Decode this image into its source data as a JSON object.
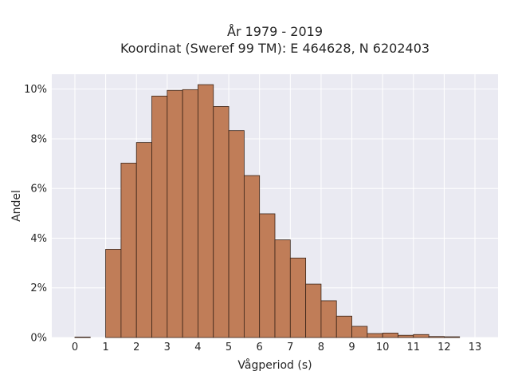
{
  "chart_data": {
    "type": "bar",
    "title": "År 1979 - 2019",
    "subtitle": "Koordinat (Sweref 99 TM): E 464628, N 6202403",
    "xlabel": "Vågperiod (s)",
    "ylabel": "Andel",
    "xlim": [
      -0.75,
      13.75
    ],
    "ylim": [
      0,
      10.6
    ],
    "x_ticks": [
      0,
      1,
      2,
      3,
      4,
      5,
      6,
      7,
      8,
      9,
      10,
      11,
      12,
      13
    ],
    "y_ticks": [
      0,
      2,
      4,
      6,
      8,
      10
    ],
    "y_tick_labels": [
      "0%",
      "2%",
      "4%",
      "6%",
      "8%",
      "10%"
    ],
    "bin_width": 0.5,
    "bin_starts": [
      0,
      0.5,
      1,
      1.5,
      2,
      2.5,
      3,
      3.5,
      4,
      4.5,
      5,
      5.5,
      6,
      6.5,
      7,
      7.5,
      8,
      8.5,
      9,
      9.5,
      10,
      10.5,
      11,
      11.5,
      12,
      12.5
    ],
    "values": [
      0.02,
      0.0,
      3.55,
      7.02,
      7.85,
      9.72,
      9.95,
      9.98,
      10.18,
      9.3,
      8.33,
      6.52,
      4.98,
      3.93,
      3.2,
      2.15,
      1.48,
      0.86,
      0.45,
      0.16,
      0.18,
      0.09,
      0.12,
      0.04,
      0.03,
      0.0
    ],
    "grid": true,
    "colors": {
      "bar_fill": "#C07D58",
      "bar_edge": "#3a2418",
      "plot_bg": "#EAEAF2",
      "grid": "#ffffff"
    }
  }
}
